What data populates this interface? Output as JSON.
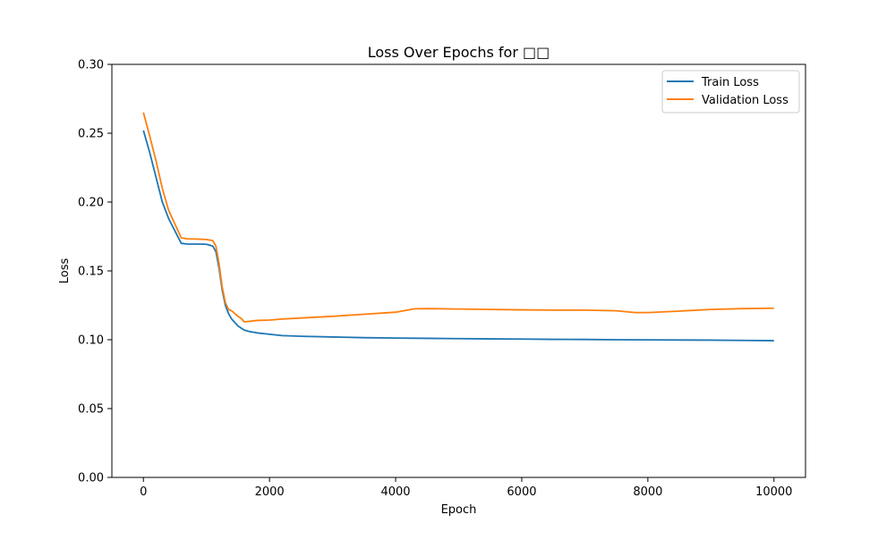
{
  "chart_data": {
    "type": "line",
    "title": "Loss Over Epochs for □□",
    "xlabel": "Epoch",
    "ylabel": "Loss",
    "xlim": [
      -500,
      10500
    ],
    "ylim": [
      0,
      0.3
    ],
    "x_ticks": [
      0,
      2000,
      4000,
      6000,
      8000,
      10000
    ],
    "y_ticks": [
      0.0,
      0.05,
      0.1,
      0.15,
      0.2,
      0.25,
      0.3
    ],
    "x_tick_labels": [
      "0",
      "2000",
      "4000",
      "6000",
      "8000",
      "10000"
    ],
    "y_tick_labels": [
      "0.00",
      "0.05",
      "0.10",
      "0.15",
      "0.20",
      "0.25",
      "0.30"
    ],
    "grid": false,
    "legend_position": "top-right",
    "series": [
      {
        "name": "Train Loss",
        "color": "#1f77b4",
        "x": [
          0,
          100,
          200,
          300,
          400,
          500,
          600,
          700,
          800,
          900,
          1000,
          1100,
          1150,
          1200,
          1250,
          1300,
          1350,
          1400,
          1500,
          1600,
          1700,
          1800,
          2000,
          2200,
          2500,
          3000,
          3500,
          4000,
          4500,
          5000,
          5500,
          6000,
          6500,
          7000,
          7500,
          8000,
          8500,
          9000,
          9500,
          10000
        ],
        "y": [
          0.252,
          0.236,
          0.218,
          0.2,
          0.188,
          0.179,
          0.17,
          0.1695,
          0.1695,
          0.1695,
          0.1693,
          0.168,
          0.164,
          0.152,
          0.136,
          0.125,
          0.119,
          0.115,
          0.11,
          0.107,
          0.1058,
          0.105,
          0.104,
          0.103,
          0.1025,
          0.102,
          0.1015,
          0.1012,
          0.101,
          0.1008,
          0.1006,
          0.1005,
          0.1003,
          0.1002,
          0.1,
          0.0999,
          0.0998,
          0.0997,
          0.0995,
          0.0993
        ]
      },
      {
        "name": "Validation Loss",
        "color": "#ff7f0e",
        "x": [
          0,
          100,
          200,
          300,
          400,
          500,
          600,
          700,
          800,
          900,
          1000,
          1100,
          1150,
          1200,
          1250,
          1300,
          1350,
          1400,
          1500,
          1550,
          1600,
          1700,
          1800,
          2000,
          2200,
          2500,
          3000,
          3500,
          4000,
          4300,
          4500,
          5000,
          5500,
          6000,
          6500,
          7000,
          7500,
          7800,
          8000,
          8500,
          9000,
          9500,
          10000
        ],
        "y": [
          0.265,
          0.248,
          0.23,
          0.21,
          0.194,
          0.184,
          0.174,
          0.1732,
          0.1732,
          0.173,
          0.1728,
          0.172,
          0.168,
          0.155,
          0.138,
          0.127,
          0.122,
          0.121,
          0.117,
          0.1155,
          0.113,
          0.1135,
          0.114,
          0.1143,
          0.115,
          0.1158,
          0.117,
          0.1185,
          0.12,
          0.1225,
          0.1226,
          0.1223,
          0.122,
          0.1217,
          0.1215,
          0.1215,
          0.121,
          0.1197,
          0.1197,
          0.1208,
          0.122,
          0.1226,
          0.1229
        ]
      }
    ]
  }
}
